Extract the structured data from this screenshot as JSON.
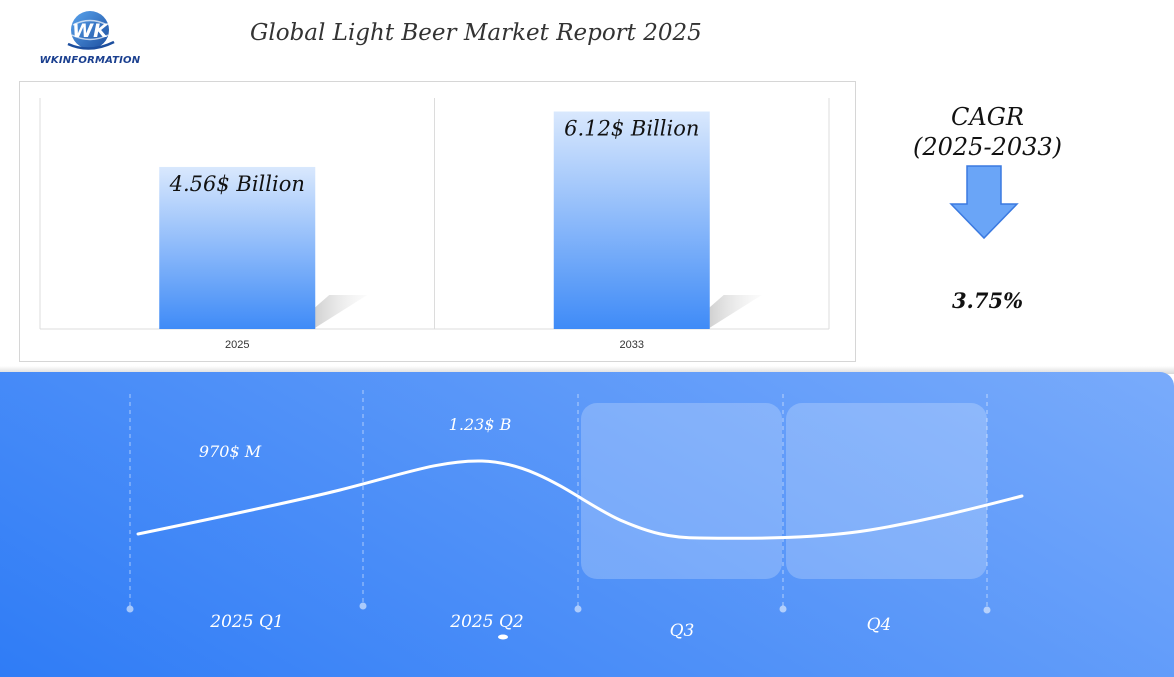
{
  "header": {
    "logo_text": "WKINFORMATION",
    "title": "Global Light Beer Market Report 2025"
  },
  "chart_data": {
    "type": "bar",
    "categories": [
      "2025",
      "2033"
    ],
    "values": [
      4.56,
      6.12
    ],
    "data_labels": [
      "4.56$ Billion",
      "6.12$ Billion"
    ],
    "unit": "$ Billion",
    "ylim": [
      0,
      6.5
    ],
    "grid": false,
    "legend": "none"
  },
  "cagr": {
    "title_line1": "CAGR",
    "title_line2": "(2025-2033)",
    "value": "3.75%"
  },
  "timeline": {
    "quarters": [
      {
        "label": "2025 Q1",
        "value_label": "970$ M"
      },
      {
        "label": "2025 Q2",
        "value_label": "1.23$ B"
      },
      {
        "label": "Q3",
        "value_label": ""
      },
      {
        "label": "Q4",
        "value_label": ""
      }
    ]
  },
  "colors": {
    "bar_top": "#d9e8fd",
    "bar_bottom": "#3f8bf7",
    "arrow_fill": "#6aa5f7",
    "arrow_stroke": "#3b7ae0",
    "band_start": "#2f7cf6",
    "band_end": "#79abfb"
  }
}
